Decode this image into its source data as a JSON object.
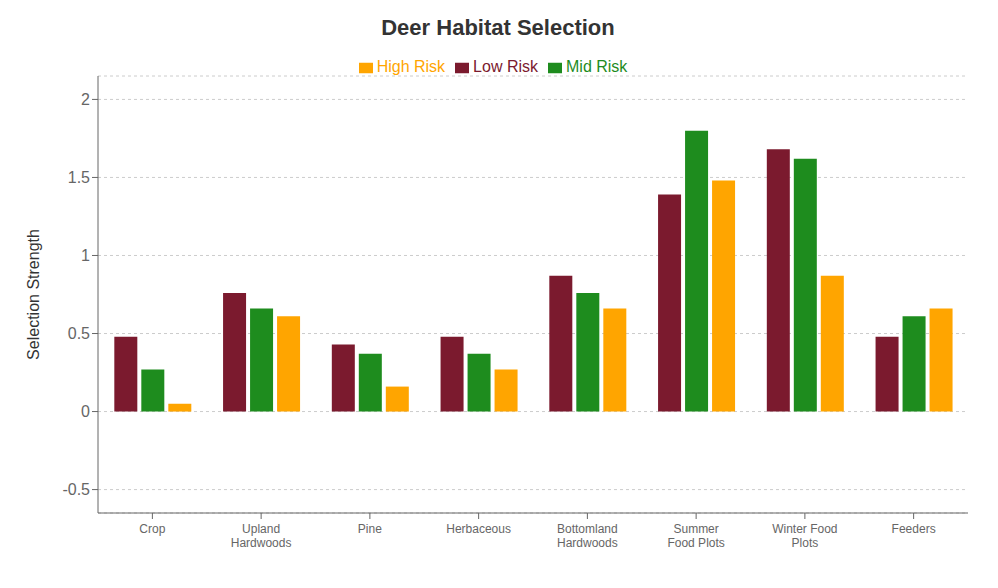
{
  "chart_data": {
    "type": "bar",
    "title": "Deer Habitat Selection",
    "ylabel": "Selection Strength",
    "categories": [
      "Crop",
      "Upland\nHardwoods",
      "Pine",
      "Herbaceous",
      "Bottomland\nHardwoods",
      "Summer\nFood Plots",
      "Winter Food\nPlots",
      "Feeders"
    ],
    "series": [
      {
        "name": "Low Risk",
        "color": "#7B1A2E",
        "values": [
          0.48,
          0.76,
          0.43,
          0.48,
          0.87,
          1.39,
          1.68,
          0.48
        ]
      },
      {
        "name": "Mid Risk",
        "color": "#1E8C1E",
        "values": [
          0.27,
          0.66,
          0.37,
          0.37,
          0.76,
          1.8,
          1.62,
          0.61
        ]
      },
      {
        "name": "High Risk",
        "color": "#FFA500",
        "values": [
          0.05,
          0.61,
          0.16,
          0.27,
          0.66,
          1.48,
          0.87,
          0.66
        ]
      }
    ],
    "ylim": [
      -0.65,
      2.15
    ],
    "yticks": [
      -0.5,
      0,
      0.5,
      1,
      1.5,
      2
    ],
    "grid": true,
    "legend": "upper center"
  }
}
